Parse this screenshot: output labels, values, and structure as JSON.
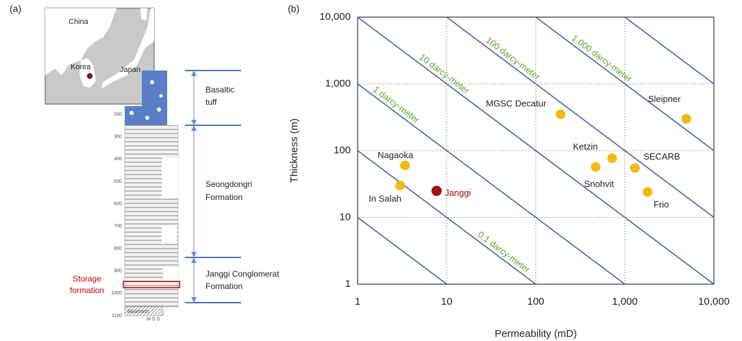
{
  "panel_labels": [
    "(a)",
    "(b)"
  ],
  "panel_a": {
    "map_labels": [
      "China",
      "Korea",
      "Japan"
    ],
    "depth_ticks": [
      200,
      300,
      400,
      500,
      600,
      700,
      800,
      900,
      1000,
      1100
    ],
    "basement_label": "Basement",
    "column_letters": "M S G",
    "storage_label": [
      "Storage",
      "formation"
    ],
    "units": [
      {
        "lines": [
          "Basaltic",
          "tuff"
        ]
      },
      {
        "lines": [
          "Seongdongri",
          "Formation"
        ]
      },
      {
        "lines": [
          "Janggi Conglomerat",
          "Formation"
        ]
      }
    ]
  },
  "chart_data": {
    "type": "scatter",
    "xlabel": "Permeability (mD)",
    "ylabel": "Thickness (m)",
    "xlog": true,
    "ylog": true,
    "grid": true,
    "xlim": [
      1,
      10000
    ],
    "ylim": [
      1,
      10000
    ],
    "xticks": [
      1,
      10,
      100,
      {
        "value": 1000,
        "label": "1,000"
      },
      {
        "value": 10000,
        "label": "10,000"
      }
    ],
    "yticks": [
      1,
      10,
      100,
      {
        "value": 1000,
        "label": "1,000"
      },
      {
        "value": 10000,
        "label": "10,000"
      }
    ],
    "iso_lines": [
      {
        "value": 0.01
      },
      {
        "value": 0.1,
        "label": "0.1 darcy-meter"
      },
      {
        "value": 1,
        "label": "1 darcy-meter"
      },
      {
        "value": 10,
        "label": "10 darcy-meter"
      },
      {
        "value": 100,
        "label": "100 darcy-meter"
      },
      {
        "value": 1000,
        "label": "1,000 darcy-meter"
      },
      {
        "value": 10000
      }
    ],
    "iso_color": "#3f64a8",
    "iso_label_color": "#5fa52e",
    "labels": [
      "Nagaoka",
      "In Salah",
      "Janggi",
      "MGSC Decatur",
      "Ketzin",
      "Snohvit",
      "SECARB",
      "Frio",
      "Sleipner"
    ],
    "x": [
      3.4,
      3,
      7.7,
      190,
      720,
      470,
      1300,
      1800,
      4900
    ],
    "y": [
      60,
      30,
      25,
      350,
      77,
      57,
      55,
      24,
      300
    ],
    "colors": [
      "#f5b90a",
      "#f5b90a",
      "#a30d0d",
      "#f5b90a",
      "#f5b90a",
      "#f5b90a",
      "#f5b90a",
      "#f5b90a",
      "#f5b90a"
    ]
  }
}
